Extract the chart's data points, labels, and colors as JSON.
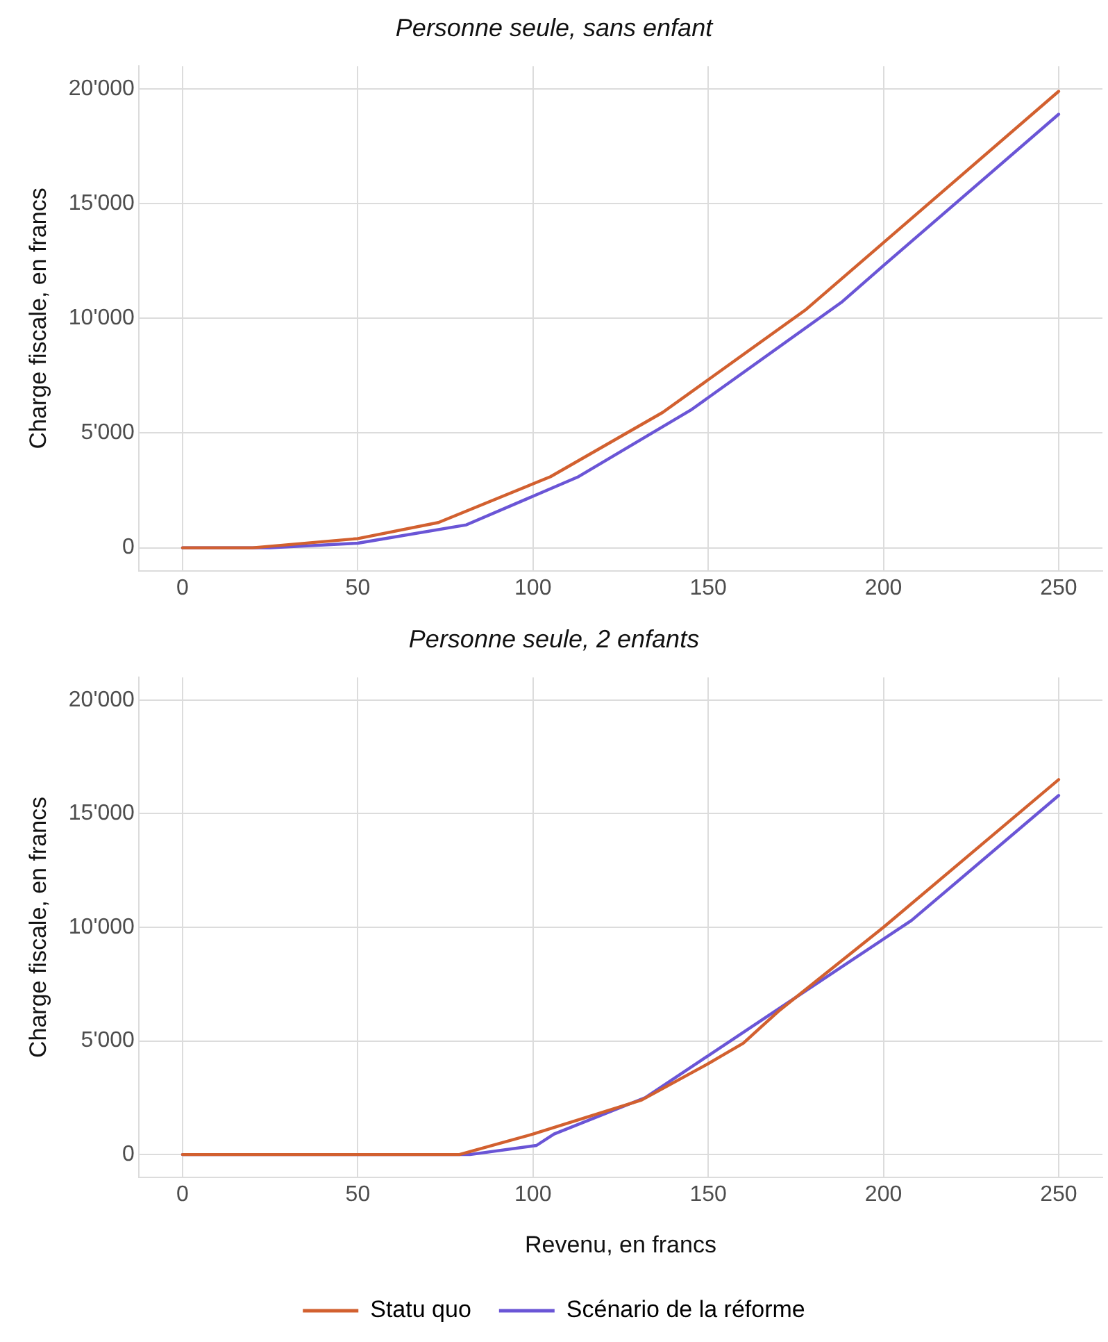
{
  "chart_data": [
    {
      "type": "line",
      "title": "Personne seule, sans enfant",
      "ylabel": "Charge fiscale, en francs",
      "xlim": [
        -12.5,
        262.5
      ],
      "ylim": [
        -1000,
        21000
      ],
      "xticks": [
        0,
        50,
        100,
        150,
        200,
        250
      ],
      "yticks": [
        0,
        {
          "value": 5000,
          "label": "5'000"
        },
        {
          "value": 10000,
          "label": "10'000"
        },
        {
          "value": 15000,
          "label": "15'000"
        },
        {
          "value": 20000,
          "label": "20'000"
        }
      ],
      "grid": true,
      "legend": false,
      "marker": "none",
      "line_style": "solid",
      "series": [
        {
          "color": "#d2602f",
          "x": [
            0,
            20,
            50,
            73,
            105,
            137,
            178,
            200,
            250
          ],
          "values": [
            0,
            0,
            400,
            1100,
            3100,
            5900,
            10400,
            13300,
            19900
          ]
        },
        {
          "color": "#6a55d6",
          "x": [
            0,
            25,
            50,
            81,
            113,
            145,
            188,
            200,
            250
          ],
          "values": [
            0,
            0,
            200,
            1000,
            3100,
            6000,
            10700,
            12300,
            18900
          ]
        }
      ]
    },
    {
      "type": "line",
      "title": "Personne seule, 2 enfants",
      "xlabel": "Revenu, en francs",
      "ylabel": "Charge fiscale, en francs",
      "xlim": [
        -12.5,
        262.5
      ],
      "ylim": [
        -1000,
        21000
      ],
      "xticks": [
        0,
        50,
        100,
        150,
        200,
        250
      ],
      "yticks": [
        0,
        {
          "value": 5000,
          "label": "5'000"
        },
        {
          "value": 10000,
          "label": "10'000"
        },
        {
          "value": 15000,
          "label": "15'000"
        },
        {
          "value": 20000,
          "label": "20'000"
        }
      ],
      "grid": true,
      "legend": "bottom",
      "marker": "none",
      "line_style": "solid",
      "series": [
        {
          "name": "Statu quo",
          "color": "#d2602f",
          "x": [
            0,
            79,
            100,
            131,
            150,
            160,
            165,
            170,
            200,
            250
          ],
          "values": [
            0,
            0,
            900,
            2400,
            4000,
            4900,
            5600,
            6300,
            10000,
            16500
          ]
        },
        {
          "name": "Scénario de la réforme",
          "color": "#6a55d6",
          "x": [
            0,
            82,
            101,
            106,
            132,
            168,
            208,
            250
          ],
          "values": [
            0,
            0,
            400,
            900,
            2500,
            6200,
            10300,
            15800
          ]
        }
      ]
    }
  ]
}
